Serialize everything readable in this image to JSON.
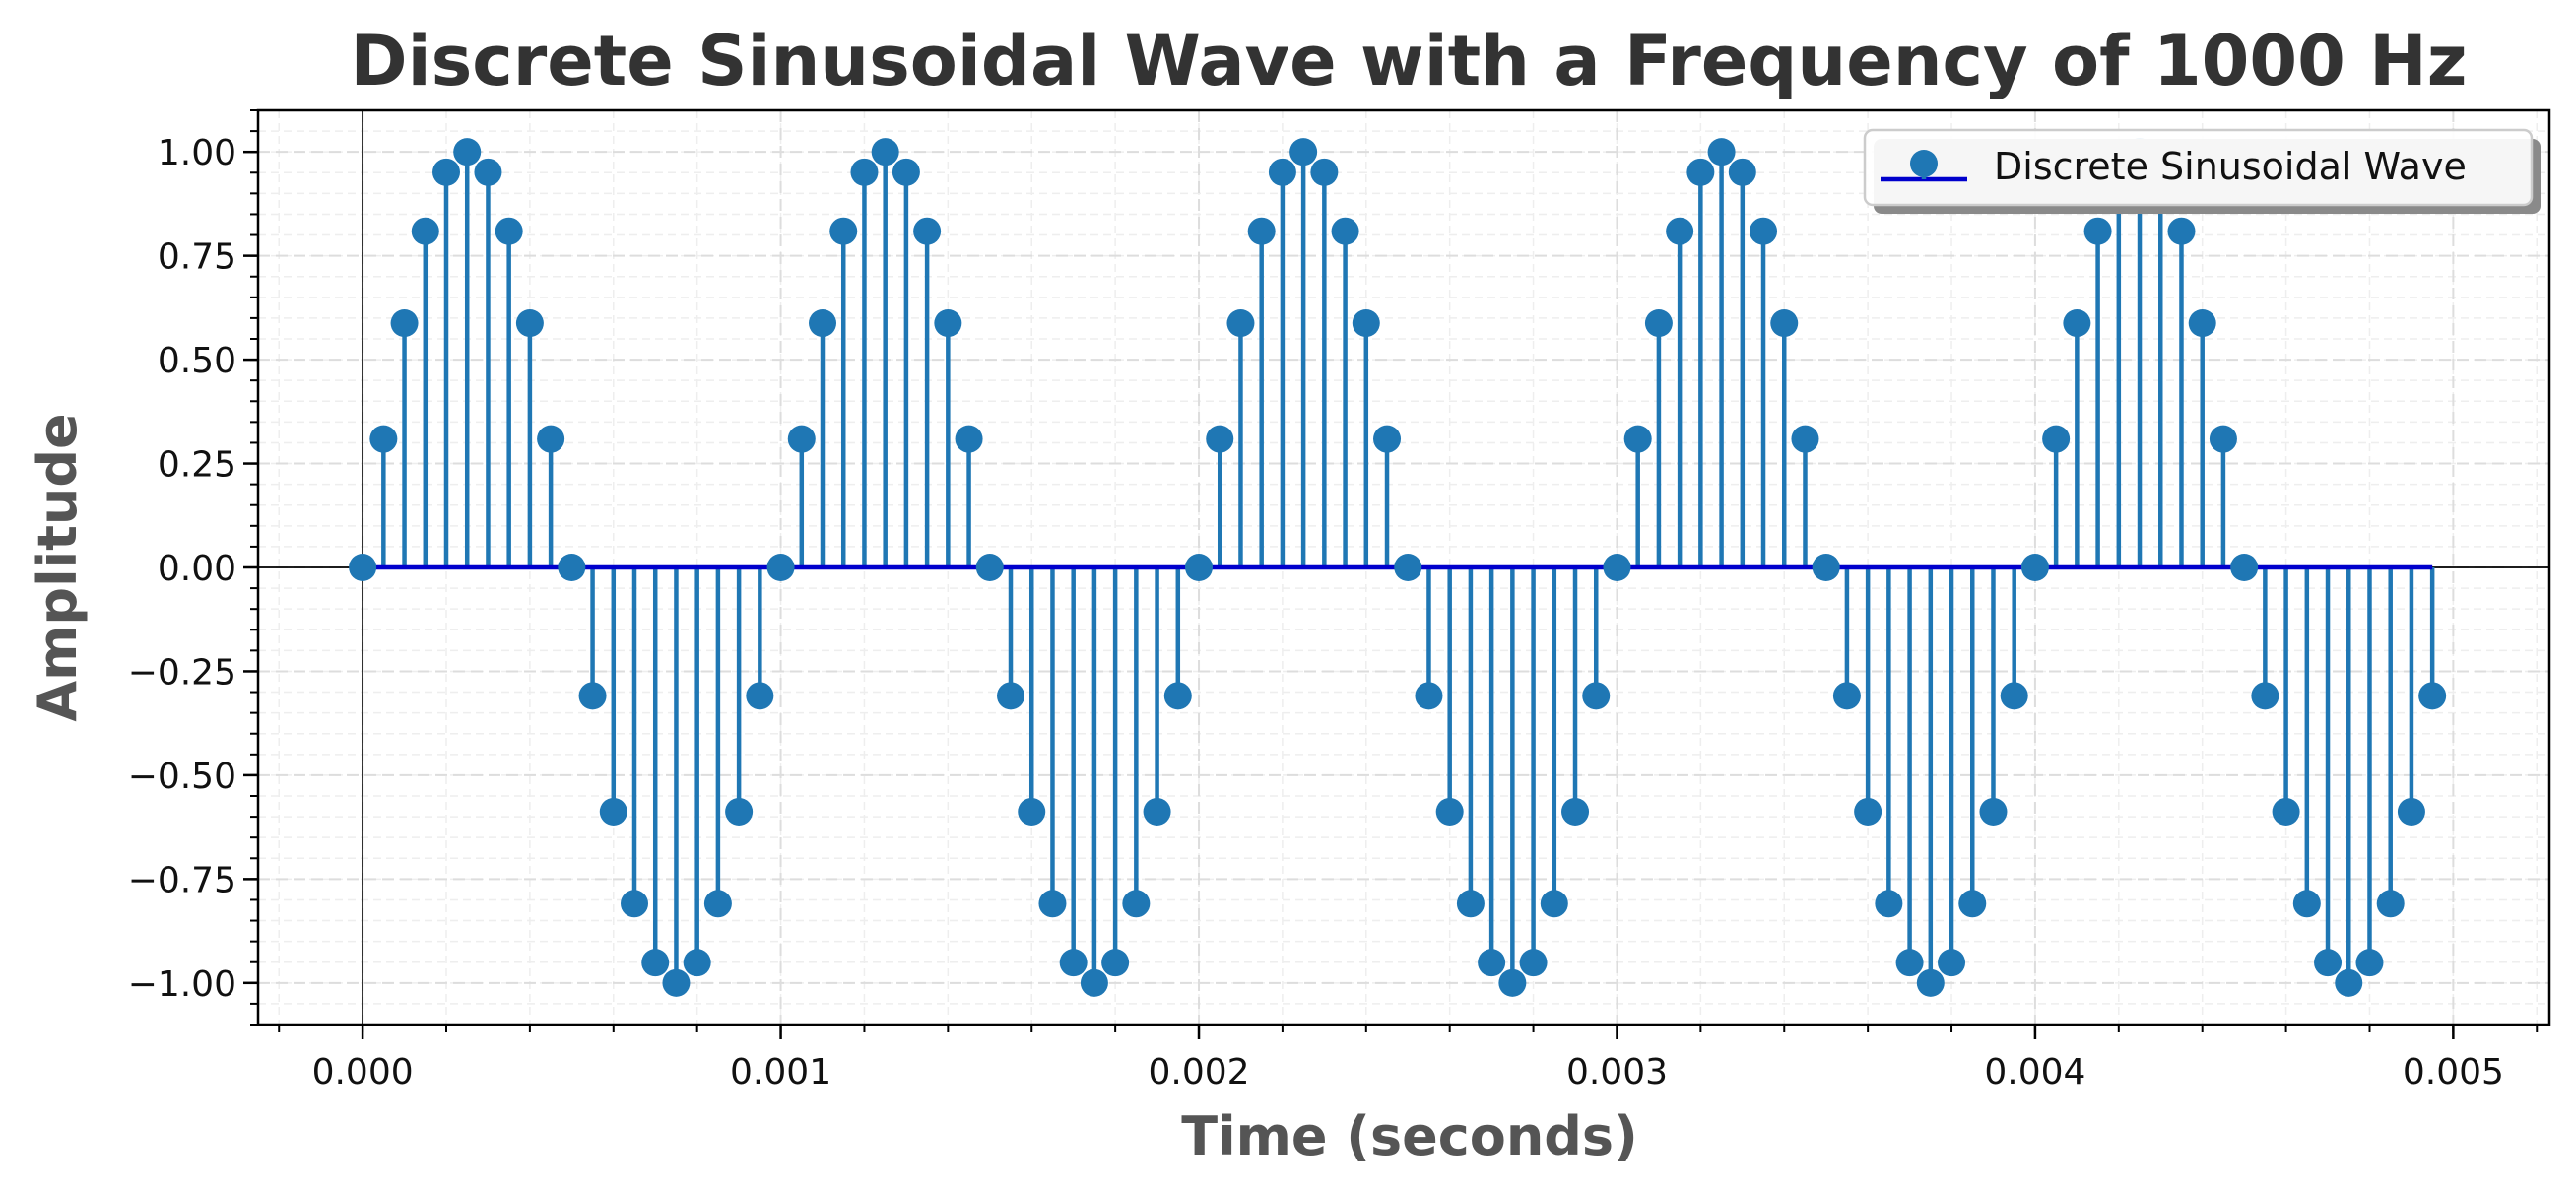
{
  "chart_data": {
    "type": "stem",
    "title": "Discrete Sinusoidal Wave with a Frequency of 1000 Hz",
    "xlabel": "Time (seconds)",
    "ylabel": "Amplitude",
    "frequency_hz": 1000,
    "sampling_rate_hz": 20000,
    "num_samples": 100,
    "xlim": [
      -0.00025,
      0.00523
    ],
    "ylim": [
      -1.1,
      1.1
    ],
    "x_ticks": [
      0.0,
      0.001,
      0.002,
      0.003,
      0.004,
      0.005
    ],
    "x_tick_labels": [
      "0.000",
      "0.001",
      "0.002",
      "0.003",
      "0.004",
      "0.005"
    ],
    "y_ticks": [
      1.0,
      0.75,
      0.5,
      0.25,
      0.0,
      -0.25,
      -0.5,
      -0.75,
      -1.0
    ],
    "y_tick_labels": [
      "1.00",
      "0.75",
      "0.50",
      "0.25",
      "0.00",
      "−0.25",
      "−0.50",
      "−0.75",
      "−1.00"
    ],
    "grid": true,
    "legend_position": "top-right",
    "series": [
      {
        "name": "Discrete Sinusoidal Wave",
        "marker_color": "#1f77b4",
        "stem_color": "#1f77b4",
        "baseline_color": "#0000cc"
      }
    ]
  }
}
